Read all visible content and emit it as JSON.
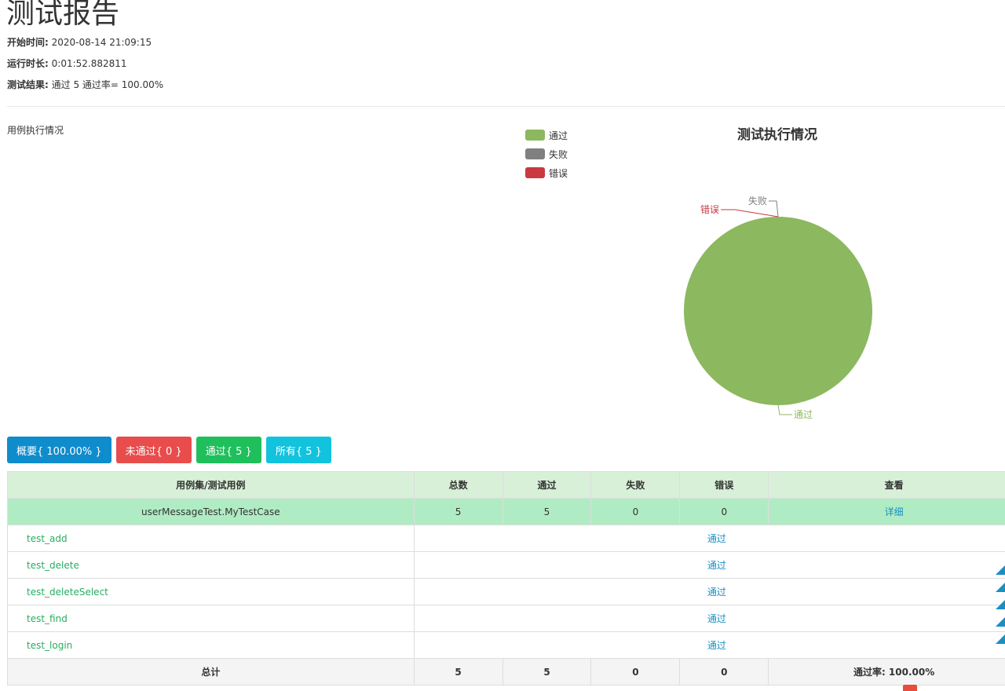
{
  "header": {
    "title": "测试报告",
    "start_time_label": "开始时间:",
    "start_time_value": "2020-08-14 21:09:15",
    "duration_label": "运行时长:",
    "duration_value": "0:01:52.882811",
    "result_label": "测试结果:",
    "result_value": "通过 5 通过率= 100.00%"
  },
  "section_label": "用例执行情况",
  "legend": [
    {
      "label": "通过",
      "color": "#8cb860"
    },
    {
      "label": "失败",
      "color": "#808080"
    },
    {
      "label": "错误",
      "color": "#c9393f"
    }
  ],
  "chart_data": {
    "type": "pie",
    "title": "测试执行情况",
    "categories": [
      "通过",
      "失败",
      "错误"
    ],
    "values": [
      5,
      0,
      0
    ],
    "colors": [
      "#8cb860",
      "#808080",
      "#c9393f"
    ],
    "legend_position": "top-left"
  },
  "filters": {
    "summary": "概要{ 100.00% }",
    "failed": "未通过{ 0 }",
    "passed": "通过{ 5 }",
    "all": "所有{ 5 }"
  },
  "table": {
    "headers": [
      "用例集/测试用例",
      "总数",
      "通过",
      "失败",
      "错误",
      "查看"
    ],
    "suite": {
      "name": "userMessageTest.MyTestCase",
      "total": "5",
      "pass": "5",
      "fail": "0",
      "error": "0",
      "detail": "详细"
    },
    "cases": [
      {
        "name": "test_add",
        "status": "通过"
      },
      {
        "name": "test_delete",
        "status": "通过"
      },
      {
        "name": "test_deleteSelect",
        "status": "通过"
      },
      {
        "name": "test_find",
        "status": "通过"
      },
      {
        "name": "test_login",
        "status": "通过"
      }
    ],
    "total_row": {
      "label": "总计",
      "total": "5",
      "pass": "5",
      "fail": "0",
      "error": "0",
      "rate": "通过率: 100.00%"
    }
  }
}
